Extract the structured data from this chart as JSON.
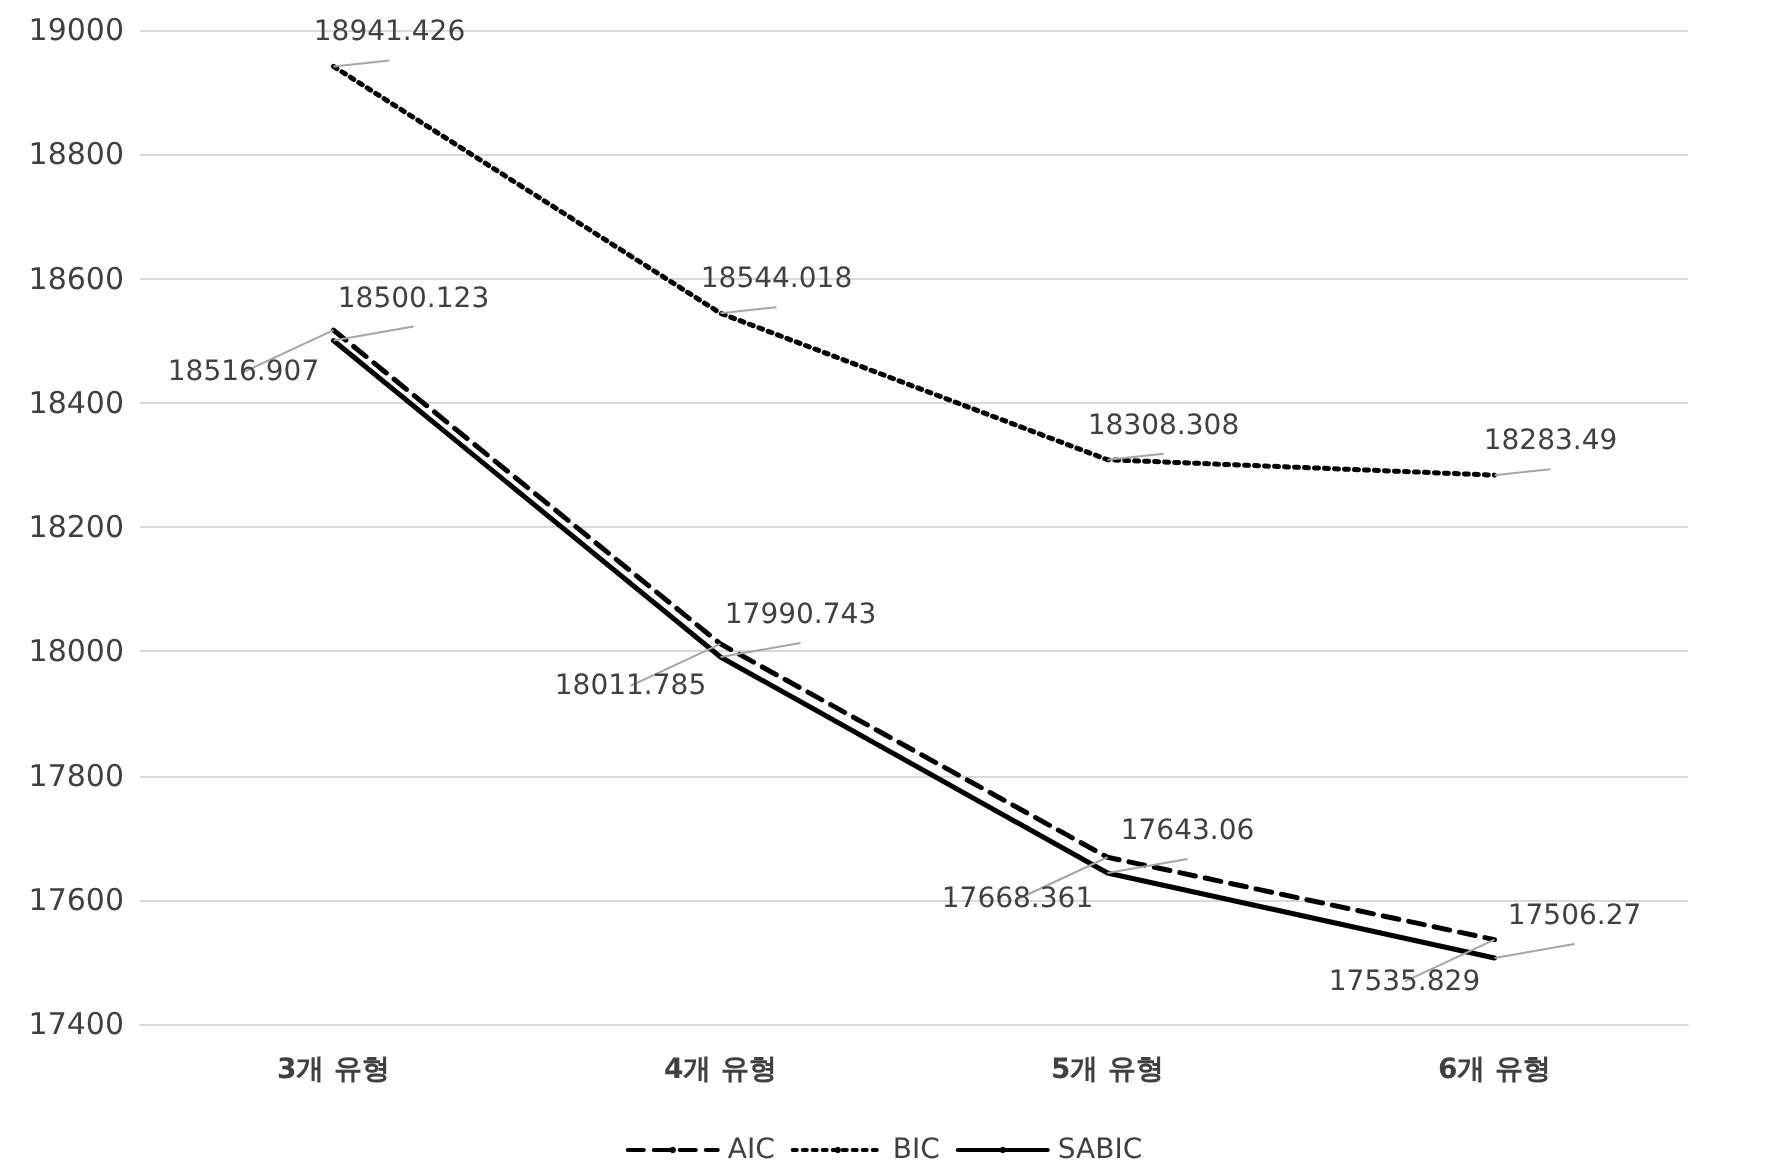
{
  "chart_data": {
    "type": "line",
    "categories": [
      "3개 유형",
      "4개 유형",
      "5개 유형",
      "6개 유형"
    ],
    "series": [
      {
        "name": "AIC",
        "color": "#000000",
        "line_style": "dashed",
        "values": [
          18516.907,
          18011.785,
          17668.361,
          17535.829
        ]
      },
      {
        "name": "BIC",
        "color": "#000000",
        "line_style": "dotted",
        "values": [
          18941.426,
          18544.018,
          18308.308,
          18283.49
        ]
      },
      {
        "name": "SABIC",
        "color": "#000000",
        "line_style": "solid",
        "values": [
          18500.123,
          17990.743,
          17643.06,
          17506.27
        ]
      }
    ],
    "ylim": [
      17400,
      19000
    ],
    "yticks": [
      17400,
      17600,
      17800,
      18000,
      18200,
      18400,
      18600,
      18800,
      19000
    ],
    "grid": "y",
    "legend": "bottom",
    "marker": "none",
    "data_labels": true
  }
}
